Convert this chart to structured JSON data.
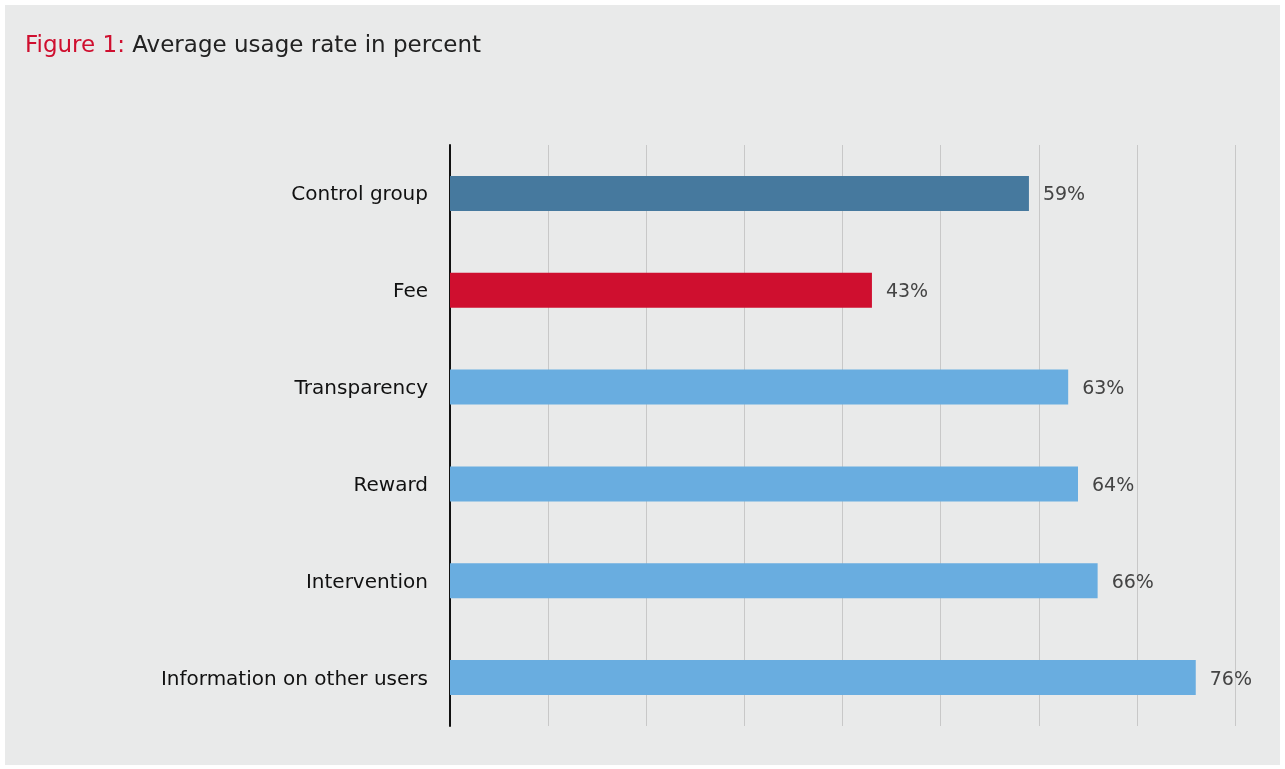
{
  "chart_data": {
    "type": "bar",
    "orientation": "horizontal",
    "title": "Figure 1: Average usage rate in percent",
    "categories": [
      "Control group",
      "Fee",
      "Transparency",
      "Reward",
      "Intervention",
      "Information on other users"
    ],
    "values": [
      59,
      43,
      63,
      64,
      66,
      76
    ],
    "colors": [
      "#46799e",
      "#cf0f2f",
      "#69ade0",
      "#69ade0",
      "#69ade0",
      "#69ade0"
    ],
    "value_labels": [
      "59%",
      "43%",
      "63%",
      "64%",
      "66%",
      "76%"
    ],
    "xlim": [
      0,
      80
    ],
    "xticks": [
      {
        "value": 0,
        "label": null
      },
      {
        "value": 10,
        "label": null
      },
      {
        "value": 20,
        "label": null
      },
      {
        "value": 30,
        "label": null
      },
      {
        "value": 40,
        "label": null
      },
      {
        "value": 50,
        "label": null
      },
      {
        "value": 60,
        "label": null
      },
      {
        "value": 70,
        "label": null
      },
      {
        "value": 80,
        "label": null
      }
    ],
    "grid": "x",
    "tick_labels": "y"
  }
}
